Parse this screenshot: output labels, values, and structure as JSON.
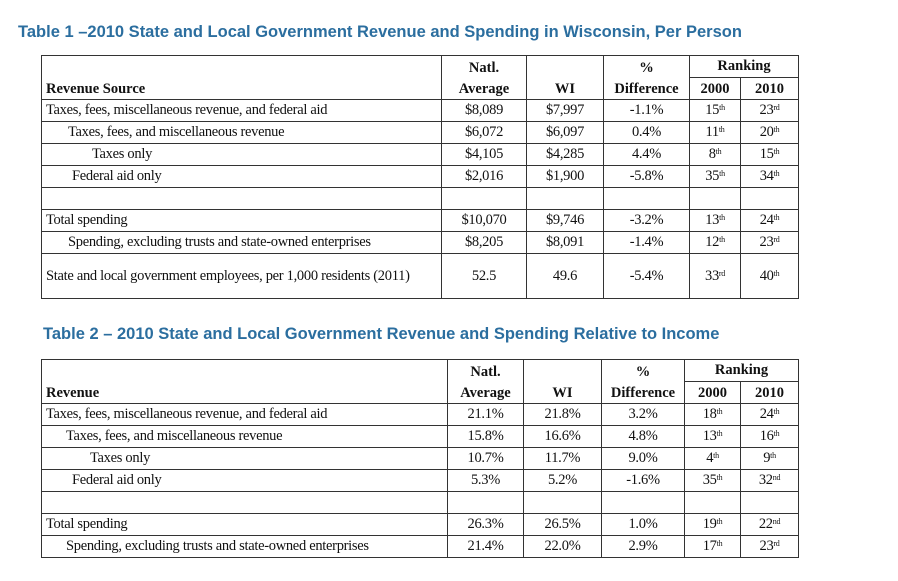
{
  "table1": {
    "title": "Table 1 –2010 State and Local Government Revenue and Spending in Wisconsin, Per Person",
    "headers": {
      "label": "Revenue Source",
      "natl_1": "Natl.",
      "natl_2": "Average",
      "wi": "WI",
      "diff_1": "%",
      "diff_2": "Difference",
      "ranking": "Ranking",
      "y2000": "2000",
      "y2010": "2010"
    },
    "rows": [
      {
        "label": "Taxes, fees, miscellaneous revenue, and federal aid",
        "level": 0,
        "natl": "$8,089",
        "wi": "$7,997",
        "diff": "-1.1%",
        "r2000": "15",
        "r2000s": "th",
        "r2010": "23",
        "r2010s": "rd"
      },
      {
        "label": "Taxes, fees, and miscellaneous revenue",
        "level": 1,
        "natl": "$6,072",
        "wi": "$6,097",
        "diff": "0.4%",
        "r2000": "11",
        "r2000s": "th",
        "r2010": "20",
        "r2010s": "th"
      },
      {
        "label": "Taxes only",
        "level": 2,
        "natl": "$4,105",
        "wi": "$4,285",
        "diff": "4.4%",
        "r2000": "8",
        "r2000s": "th",
        "r2010": "15",
        "r2010s": "th"
      },
      {
        "label": "Federal aid only",
        "level": 1,
        "natl": "$2,016",
        "wi": "$1,900",
        "diff": "-5.8%",
        "r2000": "35",
        "r2000s": "th",
        "r2010": "34",
        "r2010s": "th"
      },
      {
        "blank": true
      },
      {
        "label": "Total spending",
        "level": 0,
        "natl": "$10,070",
        "wi": "$9,746",
        "diff": "-3.2%",
        "r2000": "13",
        "r2000s": "th",
        "r2010": "24",
        "r2010s": "th"
      },
      {
        "label": "Spending, excluding trusts and state-owned enterprises",
        "level": 1,
        "natl": "$8,205",
        "wi": "$8,091",
        "diff": "-1.4%",
        "r2000": "12",
        "r2000s": "th",
        "r2010": "23",
        "r2010s": "rd"
      },
      {
        "label": "State and local government employees, per 1,000 residents (2011)",
        "level": 0,
        "tall": true,
        "natl": "52.5",
        "wi": "49.6",
        "diff": "-5.4%",
        "r2000": "33",
        "r2000s": "rd",
        "r2010": "40",
        "r2010s": "th"
      }
    ]
  },
  "table2": {
    "title": "Table 2 – 2010 State and Local Government Revenue and Spending Relative to Income",
    "headers": {
      "label": "Revenue",
      "natl_1": "Natl.",
      "natl_2": "Average",
      "wi": "WI",
      "diff_1": "%",
      "diff_2": "Difference",
      "ranking": "Ranking",
      "y2000": "2000",
      "y2010": "2010"
    },
    "rows": [
      {
        "label": "Taxes, fees, miscellaneous revenue, and federal aid",
        "level": 0,
        "natl": "21.1%",
        "wi": "21.8%",
        "diff": "3.2%",
        "r2000": "18",
        "r2000s": "th",
        "r2010": "24",
        "r2010s": "th"
      },
      {
        "label": "Taxes, fees, and miscellaneous revenue",
        "level": 1,
        "natl": "15.8%",
        "wi": "16.6%",
        "diff": "4.8%",
        "r2000": "13",
        "r2000s": "th",
        "r2010": "16",
        "r2010s": "th"
      },
      {
        "label": "Taxes only",
        "level": 2,
        "natl": "10.7%",
        "wi": "11.7%",
        "diff": "9.0%",
        "r2000": "4",
        "r2000s": "th",
        "r2010": "9",
        "r2010s": "th"
      },
      {
        "label": "Federal aid only",
        "level": 1,
        "natl": "5.3%",
        "wi": "5.2%",
        "diff": "-1.6%",
        "r2000": "35",
        "r2000s": "th",
        "r2010": "32",
        "r2010s": "nd"
      },
      {
        "blank": true
      },
      {
        "label": "Total spending",
        "level": 0,
        "natl": "26.3%",
        "wi": "26.5%",
        "diff": "1.0%",
        "r2000": "19",
        "r2000s": "th",
        "r2010": "22",
        "r2010s": "nd"
      },
      {
        "label": "Spending, excluding trusts and state-owned enterprises",
        "level": 1,
        "natl": "21.4%",
        "wi": "22.0%",
        "diff": "2.9%",
        "r2000": "17",
        "r2000s": "th",
        "r2010": "23",
        "r2010s": "rd"
      }
    ]
  }
}
